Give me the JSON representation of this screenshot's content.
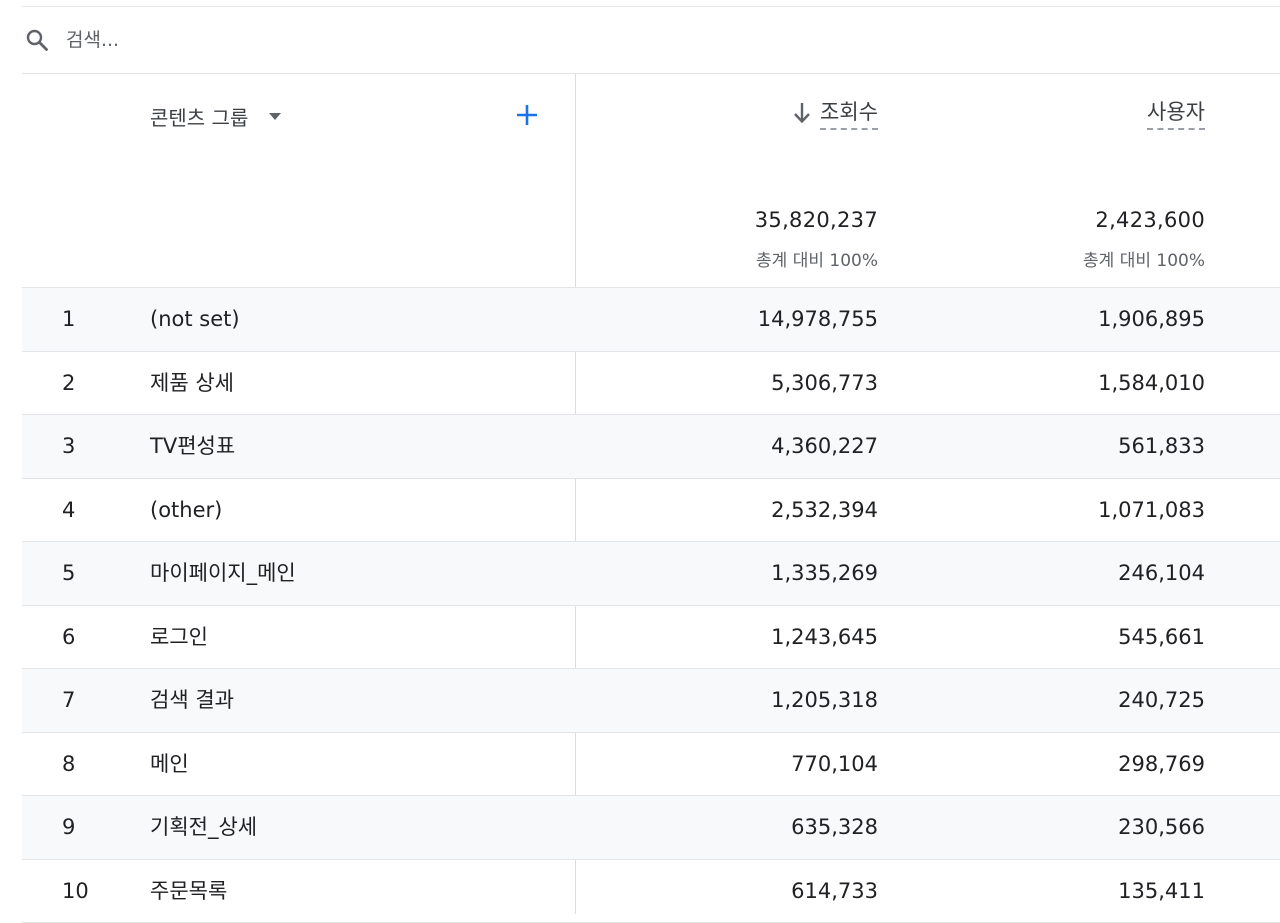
{
  "search": {
    "placeholder": "검색...",
    "icon": "search-icon"
  },
  "table": {
    "dimension_header": "콘텐츠 그룹",
    "metrics": [
      {
        "label": "조회수",
        "sorted": "desc"
      },
      {
        "label": "사용자"
      }
    ],
    "totals": [
      {
        "value": "35,820,237",
        "pct": "총계 대비 100%"
      },
      {
        "value": "2,423,600",
        "pct": "총계 대비 100%"
      }
    ],
    "rows": [
      {
        "idx": "1",
        "name": "(not set)",
        "views": "14,978,755",
        "users": "1,906,895"
      },
      {
        "idx": "2",
        "name": "제품 상세",
        "views": "5,306,773",
        "users": "1,584,010"
      },
      {
        "idx": "3",
        "name": "TV편성표",
        "views": "4,360,227",
        "users": "561,833"
      },
      {
        "idx": "4",
        "name": "(other)",
        "views": "2,532,394",
        "users": "1,071,083"
      },
      {
        "idx": "5",
        "name": "마이페이지_메인",
        "views": "1,335,269",
        "users": "246,104"
      },
      {
        "idx": "6",
        "name": "로그인",
        "views": "1,243,645",
        "users": "545,661"
      },
      {
        "idx": "7",
        "name": "검색 결과",
        "views": "1,205,318",
        "users": "240,725"
      },
      {
        "idx": "8",
        "name": "메인",
        "views": "770,104",
        "users": "298,769"
      },
      {
        "idx": "9",
        "name": "기획전_상세",
        "views": "635,328",
        "users": "230,566"
      },
      {
        "idx": "10",
        "name": "주문목록",
        "views": "614,733",
        "users": "135,411"
      }
    ]
  },
  "colors": {
    "accent": "#1a73e8",
    "row_alt": "#f8f9fa",
    "divider": "#e3e5e8"
  }
}
